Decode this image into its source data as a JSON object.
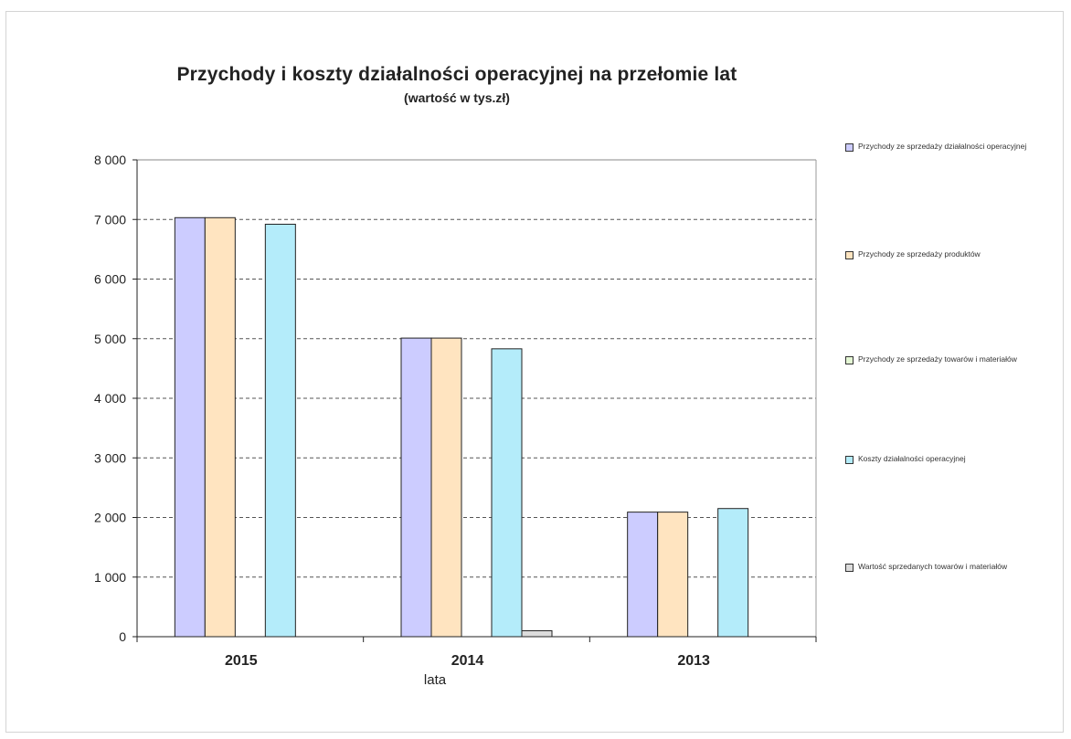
{
  "chart_data": {
    "type": "bar",
    "title": "Przychody i koszty działalności operacyjnej na przełomie lat",
    "subtitle": "(wartość w tys.zł)",
    "xlabel": "lata",
    "ylabel": "",
    "categories": [
      "2015",
      "2014",
      "2013"
    ],
    "ylim": [
      0,
      8000
    ],
    "yticks": [
      0,
      1000,
      2000,
      3000,
      4000,
      5000,
      6000,
      7000,
      8000
    ],
    "ytick_labels": [
      "0",
      "1 000",
      "2 000",
      "3 000",
      "4 000",
      "5 000",
      "6 000",
      "7 000",
      "8 000"
    ],
    "grid": "dashed horizontal",
    "legend_position": "right",
    "series": [
      {
        "name": "Przychody ze sprzedaży działalności operacyjnej",
        "color": "#ccccff",
        "values": [
          7030,
          5010,
          2090
        ]
      },
      {
        "name": "Przychody ze sprzedaży produktów",
        "color": "#ffe4c0",
        "values": [
          7030,
          5010,
          2090
        ]
      },
      {
        "name": "Przychody ze sprzedaży towarów i materiałów",
        "color": "#e4f7d4",
        "values": [
          0,
          0,
          0
        ]
      },
      {
        "name": "Koszty działalności operacyjnej",
        "color": "#b4ecfa",
        "values": [
          6920,
          4830,
          2150
        ]
      },
      {
        "name": "Wartość sprzedanych towarów i materiałów",
        "color": "#dcdcdc",
        "values": [
          0,
          100,
          0
        ]
      }
    ]
  }
}
